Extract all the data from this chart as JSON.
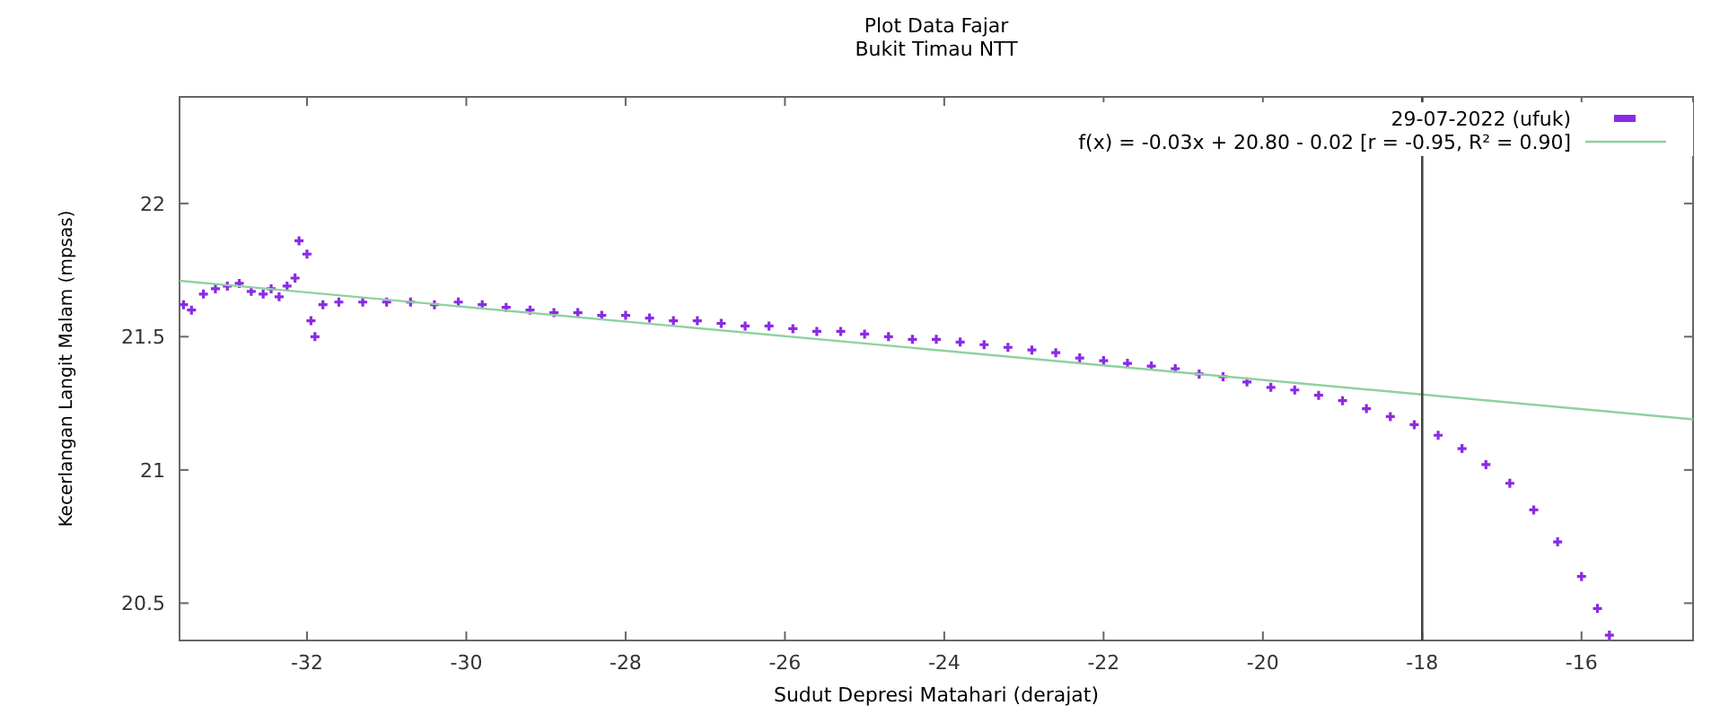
{
  "chart_data": {
    "type": "scatter",
    "title": "Plot Data Fajar",
    "subtitle": "Bukit Timau NTT",
    "xlabel": "Sudut Depresi Matahari (derajat)",
    "ylabel": "Kecerlangan Langit Malam (mpsas)",
    "xlim": [
      -33.6,
      -14.6
    ],
    "ylim": [
      20.36,
      22.4
    ],
    "xticks": [
      -32,
      -30,
      -28,
      -26,
      -24,
      -22,
      -20,
      -18,
      -16
    ],
    "yticks": [
      20.5,
      21,
      21.5,
      22
    ],
    "grid": false,
    "legend": "top right",
    "ref_lines": [
      {
        "axis": "x",
        "value": -18,
        "color": "#444444"
      }
    ],
    "series": [
      {
        "name": "29-07-2022 (ufuk)",
        "marker": "cross",
        "color": "#8a2be2",
        "x": [
          -33.55,
          -33.45,
          -33.3,
          -33.15,
          -33.0,
          -32.85,
          -32.7,
          -32.55,
          -32.45,
          -32.35,
          -32.25,
          -32.15,
          -32.1,
          -32.0,
          -31.95,
          -31.9,
          -31.8,
          -31.6,
          -31.3,
          -31.0,
          -30.7,
          -30.4,
          -30.1,
          -29.8,
          -29.5,
          -29.2,
          -28.9,
          -28.6,
          -28.3,
          -28.0,
          -27.7,
          -27.4,
          -27.1,
          -26.8,
          -26.5,
          -26.2,
          -25.9,
          -25.6,
          -25.3,
          -25.0,
          -24.7,
          -24.4,
          -24.1,
          -23.8,
          -23.5,
          -23.2,
          -22.9,
          -22.6,
          -22.3,
          -22.0,
          -21.7,
          -21.4,
          -21.1,
          -20.8,
          -20.5,
          -20.2,
          -19.9,
          -19.6,
          -19.3,
          -19.0,
          -18.7,
          -18.4,
          -18.1,
          -17.8,
          -17.5,
          -17.2,
          -16.9,
          -16.6,
          -16.3,
          -16.0,
          -15.8,
          -15.65
        ],
        "values": [
          21.62,
          21.6,
          21.66,
          21.68,
          21.69,
          21.7,
          21.67,
          21.66,
          21.68,
          21.65,
          21.69,
          21.72,
          21.86,
          21.81,
          21.56,
          21.5,
          21.62,
          21.63,
          21.63,
          21.63,
          21.63,
          21.62,
          21.63,
          21.62,
          21.61,
          21.6,
          21.59,
          21.59,
          21.58,
          21.58,
          21.57,
          21.56,
          21.56,
          21.55,
          21.54,
          21.54,
          21.53,
          21.52,
          21.52,
          21.51,
          21.5,
          21.49,
          21.49,
          21.48,
          21.47,
          21.46,
          21.45,
          21.44,
          21.42,
          21.41,
          21.4,
          21.39,
          21.38,
          21.36,
          21.35,
          21.33,
          21.31,
          21.3,
          21.28,
          21.26,
          21.23,
          21.2,
          21.17,
          21.13,
          21.08,
          21.02,
          20.95,
          20.85,
          20.73,
          20.6,
          20.48,
          20.38
        ]
      },
      {
        "name": "f(x) = -0.03x + 20.80 - 0.02 [r = -0.95, R² = 0.90]",
        "type": "line",
        "marker": "none",
        "color": "#8fd19e",
        "line_style": "solid",
        "x": [
          -33.6,
          -14.6
        ],
        "values": [
          21.71,
          21.19
        ]
      }
    ]
  }
}
